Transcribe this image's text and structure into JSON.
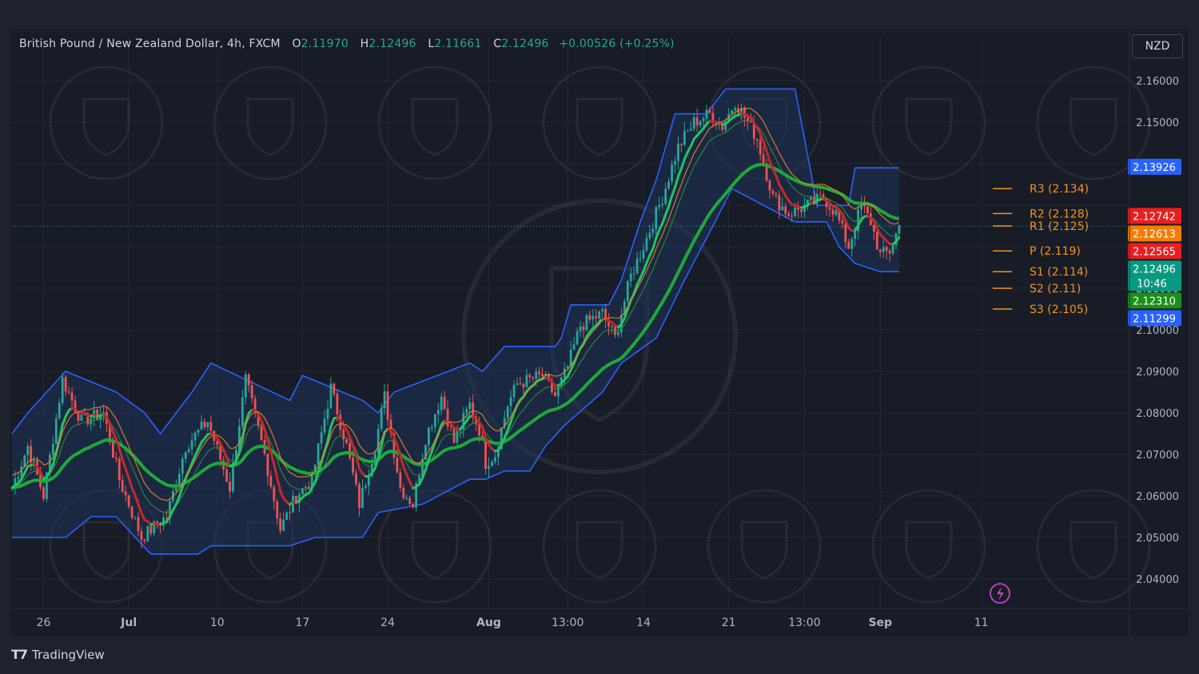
{
  "header": {
    "symbol": "British Pound / New Zealand Dollar, 4h, FXCM",
    "open_label": "O",
    "open": "2.11970",
    "high_label": "H",
    "high": "2.12496",
    "low_label": "L",
    "low": "2.11661",
    "close_label": "C",
    "close": "2.12496",
    "change": "+0.00526 (+0.25%)"
  },
  "currency_button": "NZD",
  "brand": "TradingView",
  "colors": {
    "background": "#181c26",
    "up_candle": "#26a69a",
    "down_candle": "#ef5350",
    "channel": "#2962ff",
    "pivot": "#f7931a",
    "ma_fast": "#22c55e",
    "ma_slow": "#1fa83a"
  },
  "chart_data": {
    "type": "candlestick",
    "ylim": [
      2.036,
      2.164
    ],
    "y_ticks": [
      "2.16000",
      "2.15000",
      "2.11000",
      "2.10000",
      "2.09000",
      "2.08000",
      "2.07000",
      "2.06000",
      "2.05000",
      "2.04000"
    ],
    "x_ticks": [
      {
        "label": "26",
        "bar": 10,
        "bold": false
      },
      {
        "label": "Jul",
        "bar": 37,
        "bold": true
      },
      {
        "label": "10",
        "bar": 65,
        "bold": false
      },
      {
        "label": "17",
        "bar": 92,
        "bold": false
      },
      {
        "label": "24",
        "bar": 119,
        "bold": false
      },
      {
        "label": "Aug",
        "bar": 151,
        "bold": true
      },
      {
        "label": "13:00",
        "bar": 176,
        "bold": false
      },
      {
        "label": "14",
        "bar": 200,
        "bold": false
      },
      {
        "label": "21",
        "bar": 227,
        "bold": false
      },
      {
        "label": "13:00",
        "bar": 251,
        "bold": false
      },
      {
        "label": "Sep",
        "bar": 275,
        "bold": true
      },
      {
        "label": "11",
        "bar": 307,
        "bold": false
      }
    ],
    "price_labels": [
      {
        "text": "2.13926",
        "value": 2.13926,
        "color": "#2962ff"
      },
      {
        "text": "2.12742",
        "value": 2.12742,
        "color": "#e91e1e"
      },
      {
        "text": "2.12613",
        "value": 2.12613,
        "color": "#f57c00"
      },
      {
        "text": "2.12565",
        "value": 2.12565,
        "color": "#e91e1e"
      },
      {
        "text": "2.12496",
        "value": 2.12496,
        "color": "#089981",
        "sub": "10:46"
      },
      {
        "text": "2.12310",
        "value": 2.1231,
        "color": "#1b8f1b"
      },
      {
        "text": "2.11299",
        "value": 2.11299,
        "color": "#2962ff"
      }
    ],
    "pivots": [
      {
        "label": "R3 (2.134)",
        "value": 2.134
      },
      {
        "label": "R2 (2.128)",
        "value": 2.128
      },
      {
        "label": "R1 (2.125)",
        "value": 2.125
      },
      {
        "label": "P (2.119)",
        "value": 2.119
      },
      {
        "label": "S1 (2.114)",
        "value": 2.114
      },
      {
        "label": "S2 (2.11)",
        "value": 2.11
      },
      {
        "label": "S3 (2.105)",
        "value": 2.105
      }
    ],
    "price_path": [
      [
        0,
        2.062
      ],
      [
        5,
        2.072
      ],
      [
        10,
        2.06
      ],
      [
        16,
        2.088
      ],
      [
        22,
        2.078
      ],
      [
        29,
        2.08
      ],
      [
        34,
        2.064
      ],
      [
        41,
        2.05
      ],
      [
        49,
        2.055
      ],
      [
        55,
        2.072
      ],
      [
        62,
        2.078
      ],
      [
        69,
        2.062
      ],
      [
        74,
        2.088
      ],
      [
        80,
        2.07
      ],
      [
        85,
        2.052
      ],
      [
        90,
        2.06
      ],
      [
        95,
        2.064
      ],
      [
        101,
        2.086
      ],
      [
        106,
        2.072
      ],
      [
        110,
        2.058
      ],
      [
        115,
        2.072
      ],
      [
        118,
        2.084
      ],
      [
        123,
        2.062
      ],
      [
        127,
        2.058
      ],
      [
        131,
        2.074
      ],
      [
        136,
        2.084
      ],
      [
        140,
        2.073
      ],
      [
        145,
        2.082
      ],
      [
        148,
        2.076
      ],
      [
        150,
        2.068
      ],
      [
        153,
        2.07
      ],
      [
        157,
        2.082
      ],
      [
        160,
        2.087
      ],
      [
        168,
        2.089
      ],
      [
        172,
        2.084
      ],
      [
        176,
        2.091
      ],
      [
        180,
        2.101
      ],
      [
        187,
        2.104
      ],
      [
        191,
        2.098
      ],
      [
        196,
        2.113
      ],
      [
        201,
        2.122
      ],
      [
        206,
        2.132
      ],
      [
        211,
        2.144
      ],
      [
        216,
        2.15
      ],
      [
        221,
        2.152
      ],
      [
        225,
        2.149
      ],
      [
        229,
        2.155
      ],
      [
        233,
        2.15
      ],
      [
        236,
        2.146
      ],
      [
        241,
        2.132
      ],
      [
        246,
        2.128
      ],
      [
        252,
        2.13
      ],
      [
        257,
        2.132
      ],
      [
        261,
        2.128
      ],
      [
        265,
        2.12
      ],
      [
        269,
        2.13
      ],
      [
        272,
        2.126
      ],
      [
        275,
        2.118
      ],
      [
        278,
        2.119
      ],
      [
        281,
        2.125
      ]
    ],
    "channel_upper": [
      [
        0,
        2.075
      ],
      [
        5,
        2.08
      ],
      [
        17,
        2.09
      ],
      [
        33,
        2.085
      ],
      [
        42,
        2.08
      ],
      [
        47,
        2.075
      ],
      [
        57,
        2.085
      ],
      [
        63,
        2.092
      ],
      [
        88,
        2.083
      ],
      [
        92,
        2.089
      ],
      [
        111,
        2.083
      ],
      [
        116,
        2.08
      ],
      [
        121,
        2.085
      ],
      [
        145,
        2.092
      ],
      [
        149,
        2.09
      ],
      [
        156,
        2.096
      ],
      [
        172,
        2.096
      ],
      [
        174,
        2.098
      ],
      [
        177,
        2.106
      ],
      [
        189,
        2.106
      ],
      [
        193,
        2.112
      ],
      [
        199,
        2.126
      ],
      [
        204,
        2.136
      ],
      [
        210,
        2.152
      ],
      [
        220,
        2.152
      ],
      [
        226,
        2.158
      ],
      [
        248,
        2.158
      ],
      [
        255,
        2.13
      ],
      [
        265,
        2.13
      ],
      [
        267,
        2.139
      ],
      [
        281,
        2.139
      ]
    ],
    "channel_lower": [
      [
        0,
        2.05
      ],
      [
        17,
        2.05
      ],
      [
        25,
        2.055
      ],
      [
        33,
        2.055
      ],
      [
        44,
        2.046
      ],
      [
        59,
        2.046
      ],
      [
        63,
        2.048
      ],
      [
        88,
        2.048
      ],
      [
        96,
        2.05
      ],
      [
        111,
        2.05
      ],
      [
        116,
        2.056
      ],
      [
        130,
        2.058
      ],
      [
        145,
        2.064
      ],
      [
        150,
        2.064
      ],
      [
        156,
        2.066
      ],
      [
        164,
        2.066
      ],
      [
        169,
        2.072
      ],
      [
        175,
        2.077
      ],
      [
        187,
        2.085
      ],
      [
        193,
        2.092
      ],
      [
        204,
        2.098
      ],
      [
        213,
        2.112
      ],
      [
        222,
        2.125
      ],
      [
        228,
        2.134
      ],
      [
        248,
        2.126
      ],
      [
        258,
        2.126
      ],
      [
        262,
        2.12
      ],
      [
        267,
        2.116
      ],
      [
        275,
        2.114
      ],
      [
        281,
        2.114
      ]
    ]
  }
}
